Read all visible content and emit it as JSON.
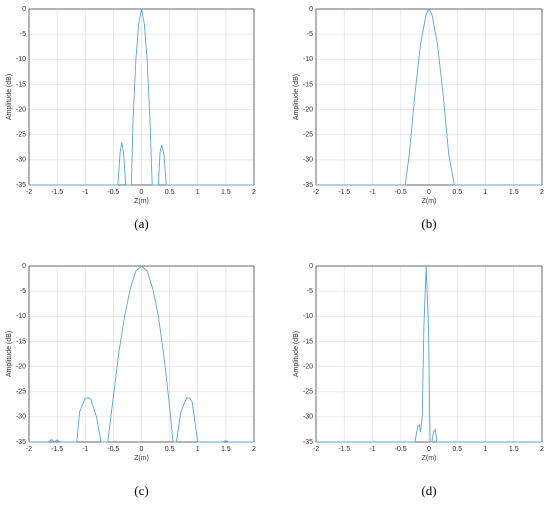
{
  "chart_data": [
    {
      "type": "line",
      "caption": "(a)",
      "xlabel": "Z(m)",
      "ylabel": "Amplitude (dB)",
      "xlim": [
        -2,
        2
      ],
      "ylim": [
        -35,
        0
      ],
      "xticks": [
        -2,
        -1.5,
        -1,
        -0.5,
        0,
        0.5,
        1,
        1.5,
        2
      ],
      "yticks": [
        0,
        -5,
        -10,
        -15,
        -20,
        -25,
        -30,
        -35
      ],
      "grid": true,
      "series": [
        {
          "color": "#5aa5d9",
          "x": [
            -2,
            -0.45,
            -0.42,
            -0.38,
            -0.35,
            -0.32,
            -0.28,
            -0.22,
            -0.18,
            -0.15,
            -0.1,
            -0.05,
            0,
            0.05,
            0.1,
            0.15,
            0.19,
            0.25,
            0.3,
            0.33,
            0.36,
            0.4,
            0.44,
            2
          ],
          "values": [
            -35,
            -35,
            -35,
            -28.5,
            -26.5,
            -28.5,
            -35,
            -35,
            -35,
            -22,
            -10,
            -3,
            0,
            -3,
            -10,
            -22,
            -35,
            -35,
            -35,
            -28.5,
            -27,
            -29,
            -35,
            -35
          ]
        }
      ]
    },
    {
      "type": "line",
      "caption": "(b)",
      "xlabel": "Z(m)",
      "ylabel": "Amplitude (dB)",
      "xlim": [
        -2,
        2
      ],
      "ylim": [
        -35,
        0
      ],
      "xticks": [
        -2,
        -1.5,
        -1,
        -0.5,
        0,
        0.5,
        1,
        1.5,
        2
      ],
      "yticks": [
        0,
        -5,
        -10,
        -15,
        -20,
        -25,
        -30,
        -35
      ],
      "grid": true,
      "series": [
        {
          "color": "#5aa5d9",
          "x": [
            -2,
            -0.42,
            -0.35,
            -0.25,
            -0.15,
            -0.05,
            0,
            0.05,
            0.15,
            0.25,
            0.35,
            0.45,
            2
          ],
          "values": [
            -35,
            -35,
            -29,
            -17,
            -7,
            -1,
            0,
            -1,
            -7,
            -17,
            -29,
            -35,
            -35
          ]
        }
      ]
    },
    {
      "type": "line",
      "caption": "(c)",
      "xlabel": "Z(m)",
      "ylabel": "Amplitude (dB)",
      "xlim": [
        -2,
        2
      ],
      "ylim": [
        -35,
        0
      ],
      "xticks": [
        -2,
        -1.5,
        -1,
        -0.5,
        0,
        0.5,
        1,
        1.5,
        2
      ],
      "yticks": [
        0,
        -5,
        -10,
        -15,
        -20,
        -25,
        -30,
        -35
      ],
      "grid": true,
      "series": [
        {
          "color": "#5aa5d9",
          "x": [
            -2,
            -1.65,
            -1.6,
            -1.55,
            -1.5,
            -1.45,
            -1.15,
            -1.1,
            -1.0,
            -0.95,
            -0.9,
            -0.8,
            -0.72,
            -0.6,
            -0.5,
            -0.4,
            -0.3,
            -0.2,
            -0.1,
            0,
            0.1,
            0.2,
            0.3,
            0.4,
            0.5,
            0.56,
            0.62,
            0.7,
            0.8,
            0.85,
            0.9,
            1.0,
            1.45,
            1.5,
            1.55,
            2
          ],
          "values": [
            -35,
            -35,
            -34.5,
            -35,
            -34.6,
            -35,
            -35,
            -29,
            -26.3,
            -26.2,
            -26.5,
            -30,
            -35,
            -35,
            -26,
            -17,
            -10,
            -4.5,
            -1,
            0,
            -1,
            -4.5,
            -10,
            -18,
            -28,
            -35,
            -35,
            -29,
            -26.3,
            -26.2,
            -27,
            -35,
            -35,
            -34.7,
            -35,
            -35
          ]
        }
      ]
    },
    {
      "type": "line",
      "caption": "(d)",
      "xlabel": "Z(m)",
      "ylabel": "Amplitude (dB)",
      "xlim": [
        -2,
        2
      ],
      "ylim": [
        -35,
        0
      ],
      "xticks": [
        -2,
        -1.5,
        -1,
        -0.5,
        0,
        0.5,
        1,
        1.5,
        2
      ],
      "yticks": [
        0,
        -5,
        -10,
        -15,
        -20,
        -25,
        -30,
        -35
      ],
      "grid": true,
      "series": [
        {
          "color": "#5aa5d9",
          "x": [
            -2,
            -0.25,
            -0.2,
            -0.17,
            -0.15,
            -0.12,
            -0.09,
            -0.05,
            -0.01,
            0.02,
            0.05,
            0.08,
            0.11,
            0.14,
            2
          ],
          "values": [
            -35,
            -35,
            -32,
            -31.5,
            -33,
            -30,
            -12,
            0,
            -12,
            -35,
            -35,
            -33,
            -32.5,
            -35,
            -35
          ]
        }
      ]
    }
  ]
}
